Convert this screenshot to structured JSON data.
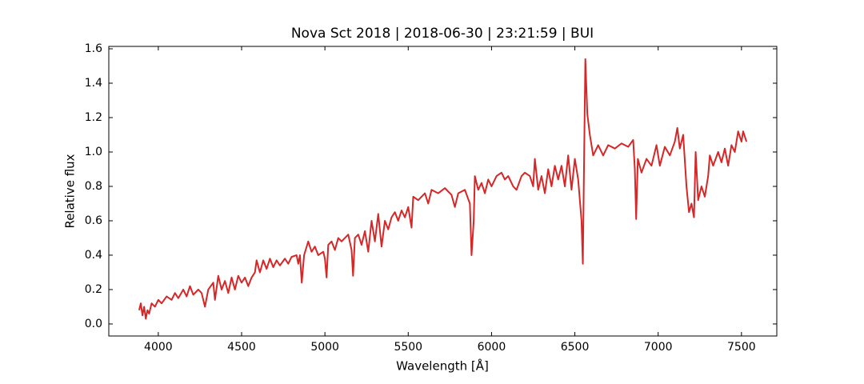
{
  "chart_data": {
    "type": "line",
    "title": "Nova Sct 2018 | 2018-06-30 | 23:21:59 | BUI",
    "x_label": "Wavelength [Å]",
    "y_label": "Relative flux",
    "xlim": [
      3703,
      7712
    ],
    "ylim": [
      -0.07,
      1.614
    ],
    "xticks": [
      4000,
      4500,
      5000,
      5500,
      6000,
      6500,
      7000,
      7500
    ],
    "yticks": [
      {
        "value": 0,
        "label": "0.0"
      },
      0.2,
      0.4,
      0.6,
      0.8,
      {
        "value": 1,
        "label": "1.0"
      },
      1.2,
      1.4,
      1.6
    ],
    "grid": false,
    "series": [
      {
        "color": "#d62728",
        "x": [
          3885,
          3895,
          3905,
          3915,
          3925,
          3935,
          3945,
          3960,
          3980,
          4000,
          4020,
          4050,
          4080,
          4100,
          4120,
          4150,
          4170,
          4190,
          4210,
          4240,
          4260,
          4280,
          4300,
          4330,
          4340,
          4360,
          4380,
          4400,
          4420,
          4440,
          4460,
          4480,
          4500,
          4520,
          4540,
          4560,
          4580,
          4590,
          4610,
          4630,
          4650,
          4670,
          4690,
          4710,
          4730,
          4760,
          4780,
          4800,
          4830,
          4840,
          4850,
          4861,
          4875,
          4900,
          4920,
          4940,
          4960,
          4990,
          5000,
          5010,
          5020,
          5040,
          5060,
          5080,
          5100,
          5120,
          5140,
          5160,
          5169,
          5180,
          5200,
          5220,
          5240,
          5260,
          5280,
          5300,
          5320,
          5340,
          5360,
          5380,
          5400,
          5420,
          5440,
          5460,
          5480,
          5500,
          5520,
          5530,
          5560,
          5600,
          5620,
          5640,
          5680,
          5720,
          5760,
          5780,
          5800,
          5840,
          5870,
          5880,
          5893,
          5900,
          5920,
          5940,
          5960,
          5980,
          6000,
          6030,
          6060,
          6080,
          6100,
          6130,
          6150,
          6180,
          6200,
          6230,
          6250,
          6260,
          6280,
          6300,
          6320,
          6340,
          6360,
          6380,
          6400,
          6420,
          6440,
          6460,
          6480,
          6500,
          6520,
          6540,
          6548,
          6556,
          6563,
          6575,
          6590,
          6610,
          6640,
          6670,
          6700,
          6740,
          6780,
          6820,
          6850,
          6860,
          6868,
          6878,
          6900,
          6930,
          6960,
          6990,
          7010,
          7040,
          7070,
          7100,
          7115,
          7130,
          7150,
          7170,
          7185,
          7200,
          7215,
          7225,
          7240,
          7260,
          7280,
          7300,
          7310,
          7330,
          7360,
          7380,
          7400,
          7420,
          7440,
          7460,
          7480,
          7500,
          7510,
          7530
        ],
        "values": [
          0.08,
          0.12,
          0.05,
          0.1,
          0.03,
          0.08,
          0.06,
          0.12,
          0.1,
          0.14,
          0.12,
          0.16,
          0.14,
          0.18,
          0.15,
          0.2,
          0.16,
          0.22,
          0.17,
          0.2,
          0.18,
          0.1,
          0.2,
          0.24,
          0.14,
          0.28,
          0.2,
          0.25,
          0.18,
          0.27,
          0.2,
          0.28,
          0.24,
          0.27,
          0.22,
          0.27,
          0.3,
          0.37,
          0.3,
          0.37,
          0.32,
          0.38,
          0.33,
          0.37,
          0.34,
          0.38,
          0.35,
          0.39,
          0.4,
          0.35,
          0.4,
          0.24,
          0.4,
          0.48,
          0.42,
          0.45,
          0.4,
          0.42,
          0.38,
          0.27,
          0.46,
          0.48,
          0.43,
          0.5,
          0.48,
          0.5,
          0.52,
          0.43,
          0.28,
          0.5,
          0.52,
          0.46,
          0.54,
          0.42,
          0.6,
          0.48,
          0.64,
          0.45,
          0.6,
          0.55,
          0.62,
          0.65,
          0.6,
          0.66,
          0.62,
          0.68,
          0.56,
          0.74,
          0.72,
          0.76,
          0.7,
          0.78,
          0.76,
          0.79,
          0.75,
          0.68,
          0.76,
          0.78,
          0.7,
          0.4,
          0.6,
          0.86,
          0.78,
          0.82,
          0.76,
          0.84,
          0.8,
          0.86,
          0.88,
          0.84,
          0.86,
          0.8,
          0.78,
          0.86,
          0.88,
          0.86,
          0.8,
          0.96,
          0.78,
          0.86,
          0.76,
          0.9,
          0.8,
          0.92,
          0.84,
          0.92,
          0.8,
          0.98,
          0.78,
          0.96,
          0.84,
          0.6,
          0.35,
          1.0,
          1.54,
          1.22,
          1.1,
          0.98,
          1.04,
          0.98,
          1.04,
          1.02,
          1.05,
          1.03,
          1.07,
          0.9,
          0.61,
          0.96,
          0.88,
          0.96,
          0.92,
          1.04,
          0.92,
          1.03,
          0.98,
          1.06,
          1.14,
          1.02,
          1.1,
          0.8,
          0.65,
          0.7,
          0.62,
          1.0,
          0.72,
          0.8,
          0.74,
          0.86,
          0.98,
          0.92,
          1.0,
          0.94,
          1.02,
          0.92,
          1.04,
          1.0,
          1.12,
          1.06,
          1.12,
          1.06
        ]
      }
    ]
  }
}
